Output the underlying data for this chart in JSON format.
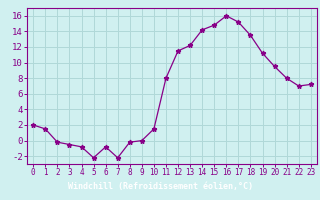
{
  "x": [
    0,
    1,
    2,
    3,
    4,
    5,
    6,
    7,
    8,
    9,
    10,
    11,
    12,
    13,
    14,
    15,
    16,
    17,
    18,
    19,
    20,
    21,
    22,
    23
  ],
  "y": [
    2.0,
    1.5,
    -0.2,
    -0.5,
    -0.8,
    -2.2,
    -0.8,
    -2.2,
    -0.2,
    0.0,
    1.5,
    8.0,
    11.5,
    12.2,
    14.2,
    14.8,
    16.0,
    15.2,
    13.5,
    11.2,
    9.5,
    8.0,
    7.0,
    7.2
  ],
  "line_color": "#880088",
  "marker": "*",
  "bg_color": "#d0f0f0",
  "grid_color": "#b0d8d8",
  "xlabel": "Windchill (Refroidissement éolien,°C)",
  "xlabel_bar_color": "#6a006a",
  "ylabel_ticks": [
    -2,
    0,
    2,
    4,
    6,
    8,
    10,
    12,
    14,
    16
  ],
  "xtick_labels": [
    "0",
    "1",
    "2",
    "3",
    "4",
    "5",
    "6",
    "7",
    "8",
    "9",
    "10",
    "11",
    "12",
    "13",
    "14",
    "15",
    "16",
    "17",
    "18",
    "19",
    "20",
    "21",
    "22",
    "23"
  ],
  "xlim": [
    -0.5,
    23.5
  ],
  "ylim": [
    -3.0,
    17.0
  ],
  "tick_color": "#880088",
  "spine_color": "#880088",
  "tick_fontsize": 5.5,
  "ytick_fontsize": 6.5,
  "xlabel_fontsize": 6.0,
  "markersize": 3.5,
  "linewidth": 0.9
}
